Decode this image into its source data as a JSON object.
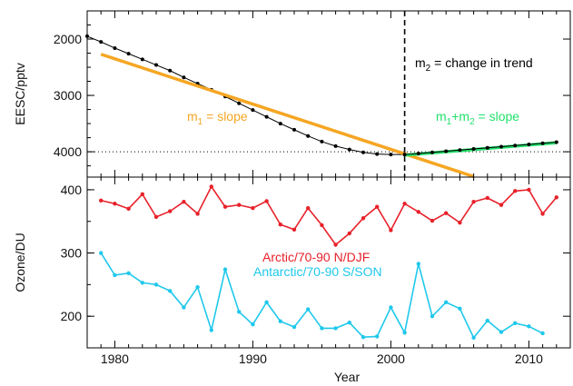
{
  "chart_data": [
    {
      "type": "line",
      "panel": "top",
      "ylabel": "EESC/pptv",
      "ylim": [
        4450,
        1500
      ],
      "y_inverted": true,
      "yticks": [
        "2000",
        "3000",
        "4000"
      ],
      "xlim": [
        1978,
        2013
      ],
      "reference_line": {
        "y": 4000,
        "style": "dotted"
      },
      "vline": {
        "x": 2001,
        "style": "dashed"
      },
      "series": [
        {
          "kind": "eesc",
          "color": "#000000",
          "x": [
            1978,
            1979,
            1980,
            1981,
            1982,
            1983,
            1984,
            1985,
            1986,
            1987,
            1988,
            1989,
            1990,
            1991,
            1992,
            1993,
            1994,
            1995,
            1996,
            1997,
            1998,
            1999,
            2000,
            2001
          ],
          "values": [
            1950,
            2050,
            2160,
            2260,
            2360,
            2460,
            2560,
            2680,
            2790,
            2900,
            3020,
            3140,
            3260,
            3380,
            3500,
            3610,
            3720,
            3820,
            3900,
            3960,
            4010,
            4040,
            4050,
            4050
          ]
        },
        {
          "kind": "m1-slope",
          "color": "#f5a623",
          "x": [
            1979,
            2006
          ],
          "values": [
            2270,
            4440
          ]
        },
        {
          "kind": "m1m2-slope",
          "color": "#22e06b",
          "x": [
            2001,
            2012
          ],
          "values": [
            4060,
            3840
          ]
        },
        {
          "kind": "eesc-extension",
          "color": "#000000",
          "x": [
            2001,
            2002,
            2003,
            2004,
            2005,
            2006,
            2007,
            2008,
            2009,
            2010,
            2011,
            2012
          ],
          "values": [
            4050,
            4030,
            4010,
            3990,
            3970,
            3950,
            3930,
            3910,
            3890,
            3870,
            3850,
            3830
          ]
        }
      ],
      "annotations": {
        "m1_main": "m",
        "m1_sub": "1",
        "m1_rest": " = slope",
        "m2_main": "m",
        "m2_sub": "2",
        "m2_rest": " = change in trend",
        "m1m2_m": "m",
        "m1m2_sub1": "1",
        "m1m2_plus": "+m",
        "m1m2_sub2": "2",
        "m1m2_rest": " = slope",
        "m1_color": "#f5a623",
        "m1m2_color": "#22e06b"
      }
    },
    {
      "type": "line",
      "panel": "bottom",
      "xlabel": "Year",
      "ylabel": "Ozone/DU",
      "ylim": [
        150,
        420
      ],
      "yticks": [
        "200",
        "300",
        "400"
      ],
      "xlim": [
        1978,
        2013
      ],
      "xticks": [
        "1980",
        "1990",
        "2000",
        "2010"
      ],
      "series": [
        {
          "name": "Arctic/70-90 N/DJF",
          "color": "#e8212a",
          "x": [
            1979,
            1980,
            1981,
            1982,
            1983,
            1984,
            1985,
            1986,
            1987,
            1988,
            1989,
            1990,
            1991,
            1992,
            1993,
            1994,
            1995,
            1996,
            1997,
            1998,
            1999,
            2000,
            2001,
            2002,
            2003,
            2004,
            2005,
            2006,
            2007,
            2008,
            2009,
            2010,
            2011,
            2012
          ],
          "values": [
            383,
            378,
            370,
            393,
            357,
            366,
            381,
            362,
            405,
            373,
            376,
            371,
            382,
            345,
            337,
            371,
            344,
            313,
            331,
            355,
            373,
            336,
            378,
            365,
            351,
            363,
            348,
            381,
            387,
            376,
            398,
            400,
            362,
            388
          ]
        },
        {
          "name": "Antarctic/70-90 S/SON",
          "color": "#1fc8ec",
          "x": [
            1979,
            1980,
            1981,
            1982,
            1983,
            1984,
            1985,
            1986,
            1987,
            1988,
            1989,
            1990,
            1991,
            1992,
            1993,
            1994,
            1995,
            1996,
            1997,
            1998,
            1999,
            2000,
            2001,
            2002,
            2003,
            2004,
            2005,
            2006,
            2007,
            2008,
            2009,
            2010,
            2011
          ],
          "values": [
            300,
            265,
            268,
            253,
            250,
            240,
            214,
            246,
            178,
            274,
            207,
            187,
            222,
            192,
            183,
            211,
            181,
            181,
            190,
            167,
            168,
            214,
            174,
            283,
            200,
            222,
            212,
            166,
            193,
            175,
            189,
            184,
            173
          ]
        }
      ]
    }
  ]
}
